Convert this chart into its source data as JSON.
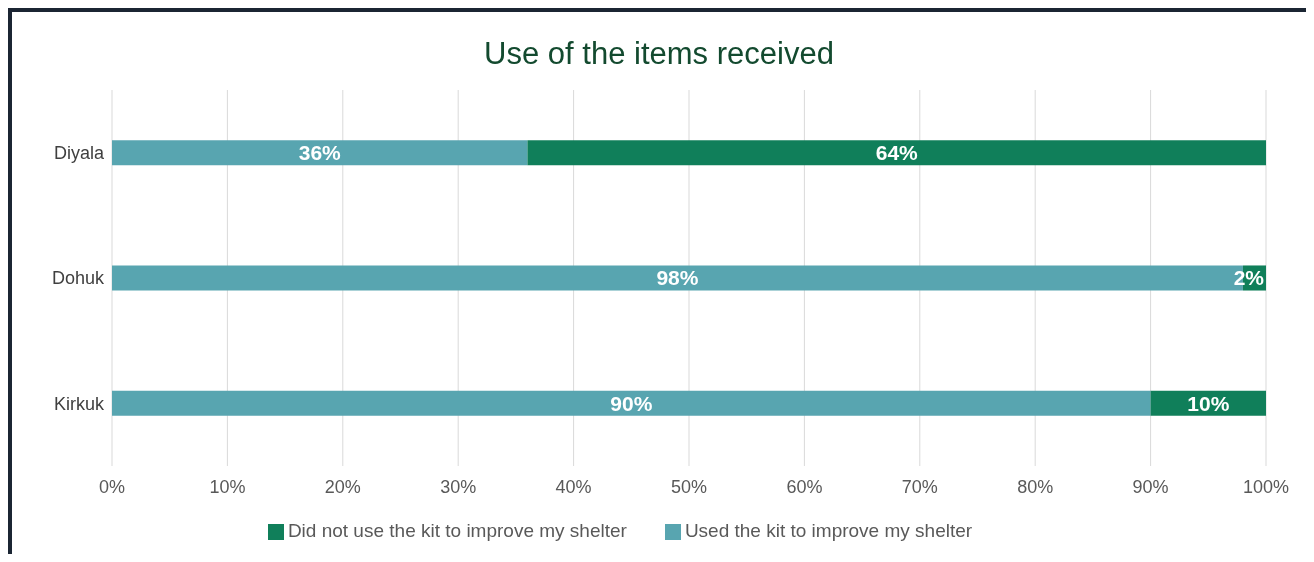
{
  "chart_data": {
    "type": "bar",
    "orientation": "horizontal",
    "stacked": true,
    "title": "Use of the items received",
    "categories": [
      "Diyala",
      "Dohuk",
      "Kirkuk"
    ],
    "series": [
      {
        "name": "Used the kit to improve my shelter",
        "color": "#58a5b0",
        "values": [
          36,
          98,
          90
        ],
        "value_labels": [
          "36%",
          "98%",
          "90%"
        ]
      },
      {
        "name": "Did not use the kit to improve my shelter",
        "color": "#107f5a",
        "values": [
          64,
          2,
          10
        ],
        "value_labels": [
          "64%",
          "2%",
          "10%"
        ]
      }
    ],
    "xlim": [
      0,
      100
    ],
    "xticks": [
      {
        "value": 0,
        "label": "0%"
      },
      {
        "value": 10,
        "label": "10%"
      },
      {
        "value": 20,
        "label": "20%"
      },
      {
        "value": 30,
        "label": "30%"
      },
      {
        "value": 40,
        "label": "40%"
      },
      {
        "value": 50,
        "label": "50%"
      },
      {
        "value": 60,
        "label": "60%"
      },
      {
        "value": 70,
        "label": "70%"
      },
      {
        "value": 80,
        "label": "80%"
      },
      {
        "value": 90,
        "label": "90%"
      },
      {
        "value": 100,
        "label": "100%"
      }
    ],
    "grid": "x",
    "legend": "bottom"
  }
}
